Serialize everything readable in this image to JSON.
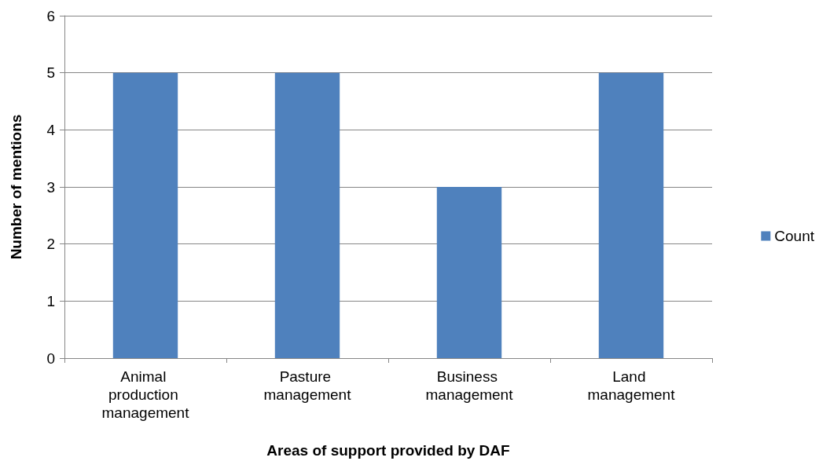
{
  "chart_data": {
    "type": "bar",
    "categories": [
      "Animal production management",
      "Pasture management",
      "Business management",
      "Land management"
    ],
    "series": [
      {
        "name": "Count",
        "color": "#4f81bd",
        "values": [
          5,
          5,
          3,
          5
        ]
      }
    ],
    "xlabel": "Areas of support provided by DAF",
    "ylabel": "Number of mentions",
    "ylim": [
      0,
      6
    ],
    "yticks": [
      0,
      1,
      2,
      3,
      4,
      5,
      6
    ],
    "grid": "y",
    "legend": "right"
  }
}
